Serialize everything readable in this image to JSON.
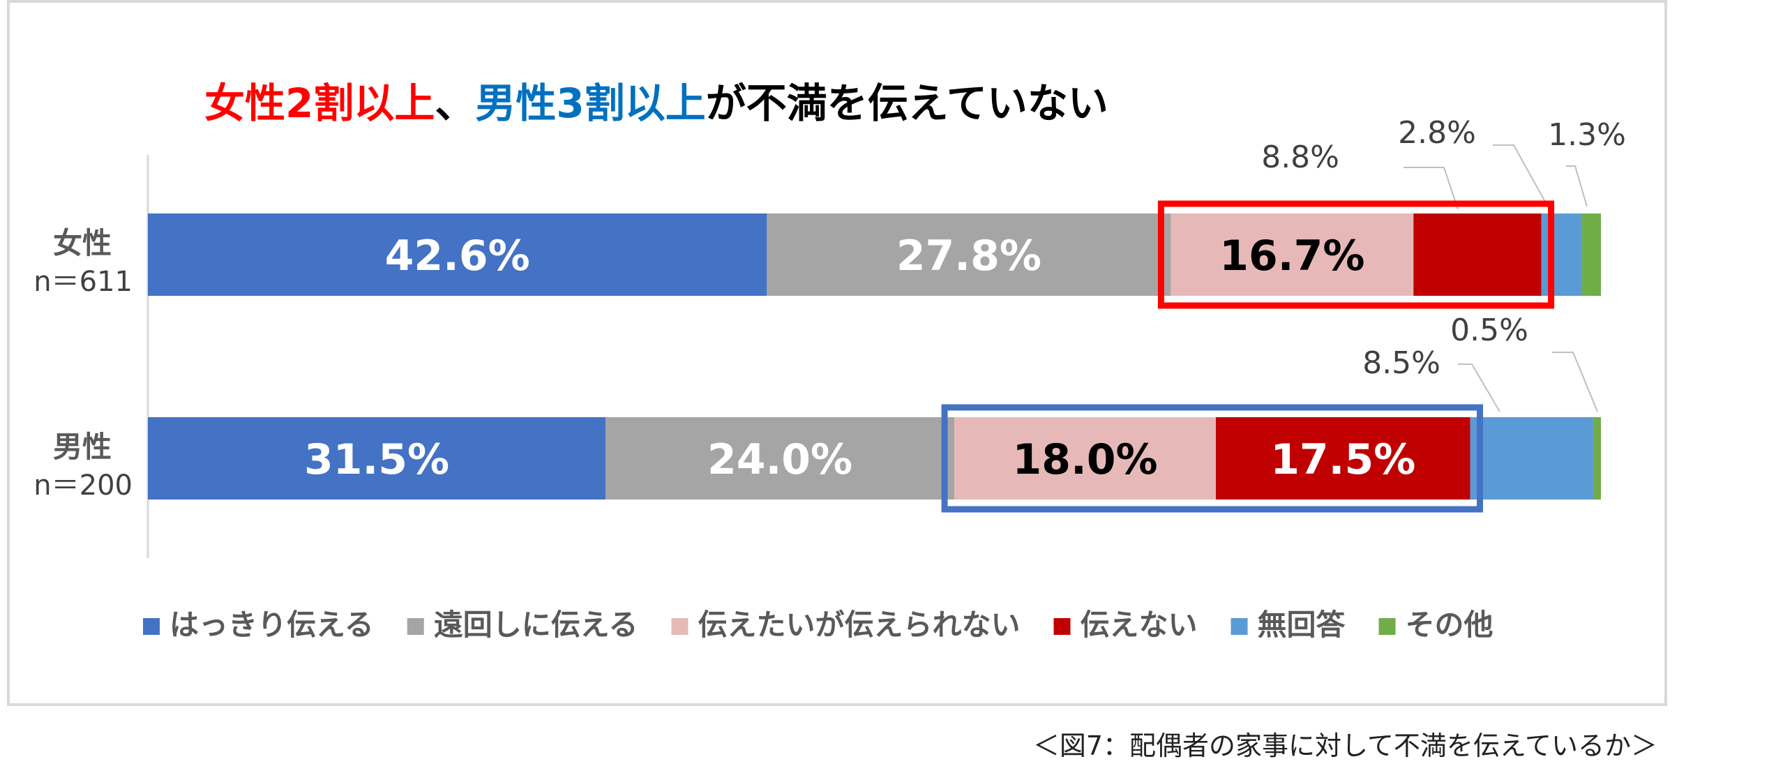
{
  "title": {
    "part1": "女性2割以上",
    "part1_color": "#ff0000",
    "sep": "、",
    "part2": "男性3割以上",
    "part2_color": "#0070c0",
    "part3": "が不満を伝えていない",
    "part3_color": "#000000"
  },
  "caption": "＜図7：配偶者の家事に対して不満を伝えているか＞",
  "chart_data": {
    "type": "bar",
    "orientation": "horizontal",
    "stacked": true,
    "xlim": [
      0,
      100
    ],
    "grid": false,
    "legend_position": "bottom",
    "categories": [
      {
        "name": "女性",
        "n": "n＝611"
      },
      {
        "name": "男性",
        "n": "n＝200"
      }
    ],
    "series": [
      {
        "name": "はっきり伝える",
        "color": "#4472c4",
        "values": [
          42.6,
          31.5
        ],
        "labels": [
          "42.6%",
          "31.5%"
        ]
      },
      {
        "name": "遠回しに伝える",
        "color": "#a5a5a5",
        "values": [
          27.8,
          24.0
        ],
        "labels": [
          "27.8%",
          "24.0%"
        ]
      },
      {
        "name": "伝えたいが伝えられない",
        "color": "#e6b9b8",
        "values": [
          16.7,
          18.0
        ],
        "labels": [
          "16.7%",
          "18.0%"
        ]
      },
      {
        "name": "伝えない",
        "color": "#c00000",
        "values": [
          8.8,
          17.5
        ],
        "labels": [
          "8.8%",
          "17.5%"
        ]
      },
      {
        "name": "無回答",
        "color": "#5b9bd5",
        "values": [
          2.8,
          8.5
        ],
        "labels": [
          "2.8%",
          "8.5%"
        ]
      },
      {
        "name": "その他",
        "color": "#70ad47",
        "values": [
          1.3,
          0.5
        ],
        "labels": [
          "1.3%",
          "0.5%"
        ]
      }
    ],
    "highlights": [
      {
        "category": 0,
        "from_series": 2,
        "to_series": 3,
        "color": "#ff0000"
      },
      {
        "category": 1,
        "from_series": 2,
        "to_series": 3,
        "color": "#4472c4"
      }
    ]
  }
}
